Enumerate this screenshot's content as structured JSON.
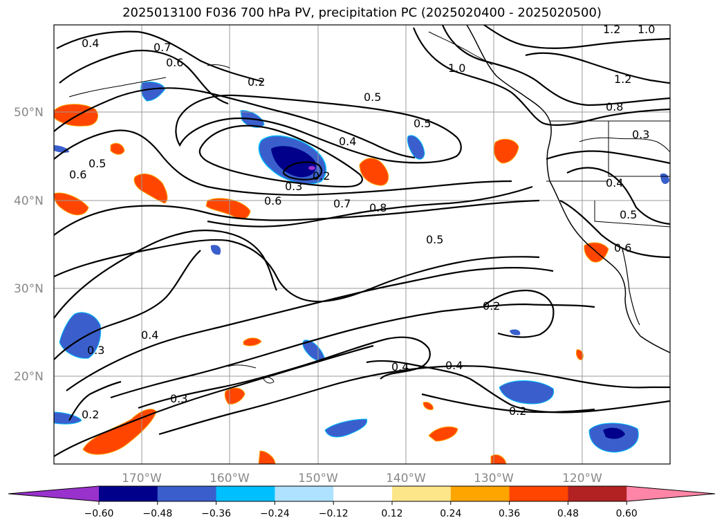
{
  "title": "2025013100 F036 700 hPa PV, precipitation PC (2025020400 - 2025020500)",
  "lon_labels": [
    "170°W",
    "160°W",
    "150°W",
    "140°W",
    "130°W",
    "120°W"
  ],
  "lat_labels": [
    "50°N",
    "40°N",
    "30°N",
    "20°N"
  ],
  "contour_labels": [
    "0.4",
    "0.7",
    "0.6",
    "0.2",
    "0.5",
    "0.5",
    "0.4",
    "0.3",
    "0.2",
    "0.6",
    "0.7",
    "0.8",
    "0.5",
    "0.5",
    "0.6",
    "0.2",
    "0.4",
    "0.3",
    "0.3",
    "0.2",
    "0.4",
    "0.4",
    "0.2",
    "1.0",
    "1.2",
    "1.0",
    "1.2",
    "0.8",
    "0.3",
    "0.4",
    "0.5",
    "0.6"
  ],
  "colorbar": {
    "colors": [
      "#9932cc",
      "#00008b",
      "#3a5fcd",
      "#00bfff",
      "#aee2ff",
      "#ffffff",
      "#fde68a",
      "#ffa500",
      "#ff4500",
      "#b22222",
      "#ff85a6"
    ],
    "tick_labels": [
      "−0.60",
      "−0.48",
      "−0.36",
      "−0.24",
      "−0.12",
      "0.12",
      "0.24",
      "0.36",
      "0.48",
      "0.60"
    ]
  },
  "colors": {
    "negative_strong": "#00008b",
    "negative": "#3a5fcd",
    "positive": "#ff4500",
    "contour": "#000000",
    "grid": "#999999"
  }
}
